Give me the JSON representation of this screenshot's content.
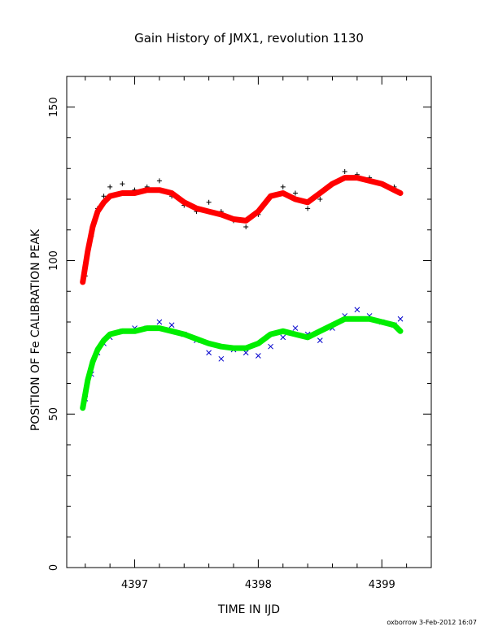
{
  "chart_data": {
    "type": "scatter",
    "title": "Gain History of JMX1, revolution 1130",
    "xlabel": "TIME IN IJD",
    "ylabel": "POSITION OF Fe CALIBRATION PEAK",
    "xlim": [
      4396.45,
      4399.4
    ],
    "ylim": [
      0,
      160
    ],
    "xticks": [
      4397,
      4398,
      4399
    ],
    "xtick_labels": [
      "4397",
      "4398",
      "4399"
    ],
    "yticks": [
      0,
      50,
      100,
      150
    ],
    "ytick_labels": [
      "0",
      "50",
      "100",
      "150"
    ],
    "grid": false,
    "credit": "oxborrow  3-Feb-2012 16:07",
    "series": [
      {
        "marker": "plus",
        "color": "#000000",
        "x": [
          4396.6,
          4396.65,
          4396.7,
          4396.75,
          4396.8,
          4396.9,
          4397.0,
          4397.1,
          4397.2,
          4397.3,
          4397.4,
          4397.5,
          4397.6,
          4397.7,
          4397.8,
          4397.9,
          4398.0,
          4398.1,
          4398.2,
          4398.3,
          4398.4,
          4398.5,
          4398.6,
          4398.7,
          4398.8,
          4398.9,
          4399.0,
          4399.1,
          4399.15
        ],
        "y": [
          95,
          108,
          117,
          121,
          124,
          125,
          123,
          124,
          126,
          121,
          118,
          116,
          119,
          116,
          113,
          111,
          115,
          121,
          124,
          122,
          117,
          120,
          125,
          129,
          128,
          127,
          125,
          124,
          122
        ]
      },
      {
        "marker": "line",
        "color": "#ff0000",
        "x": [
          4396.58,
          4396.62,
          4396.66,
          4396.7,
          4396.75,
          4396.8,
          4396.9,
          4397.0,
          4397.1,
          4397.2,
          4397.3,
          4397.4,
          4397.5,
          4397.6,
          4397.7,
          4397.8,
          4397.9,
          4398.0,
          4398.1,
          4398.2,
          4398.3,
          4398.4,
          4398.5,
          4398.6,
          4398.7,
          4398.8,
          4398.9,
          4399.0,
          4399.1,
          4399.15
        ],
        "y": [
          93,
          103,
          111,
          116,
          119,
          121,
          122,
          122,
          123,
          123,
          122,
          119,
          117,
          116,
          115,
          113.5,
          113,
          116,
          121,
          122,
          120,
          119,
          122,
          125,
          127,
          127,
          126,
          125,
          123,
          122
        ]
      },
      {
        "marker": "x",
        "color": "#0000cc",
        "x": [
          4396.6,
          4396.65,
          4396.7,
          4396.75,
          4396.8,
          4396.9,
          4397.0,
          4397.1,
          4397.2,
          4397.3,
          4397.4,
          4397.5,
          4397.6,
          4397.7,
          4397.8,
          4397.9,
          4398.0,
          4398.1,
          4398.2,
          4398.3,
          4398.4,
          4398.5,
          4398.6,
          4398.7,
          4398.8,
          4398.9,
          4399.0,
          4399.1,
          4399.15
        ],
        "y": [
          55,
          63,
          70,
          73,
          75,
          77,
          78,
          78,
          80,
          79,
          76,
          74,
          70,
          68,
          71,
          70,
          69,
          72,
          75,
          78,
          76,
          74,
          78,
          82,
          84,
          82,
          80,
          79,
          81
        ]
      },
      {
        "marker": "line",
        "color": "#00ee00",
        "x": [
          4396.58,
          4396.62,
          4396.66,
          4396.7,
          4396.75,
          4396.8,
          4396.9,
          4397.0,
          4397.1,
          4397.2,
          4397.3,
          4397.4,
          4397.5,
          4397.6,
          4397.7,
          4397.8,
          4397.9,
          4398.0,
          4398.1,
          4398.2,
          4398.3,
          4398.4,
          4398.5,
          4398.6,
          4398.7,
          4398.8,
          4398.9,
          4399.0,
          4399.1,
          4399.15
        ],
        "y": [
          52,
          61,
          67,
          71,
          74,
          76,
          77,
          77,
          78,
          78,
          77,
          76,
          74.5,
          73,
          72,
          71.5,
          71.5,
          73,
          76,
          77,
          76,
          75,
          77,
          79,
          81,
          81,
          81,
          80,
          79,
          77
        ]
      }
    ]
  }
}
